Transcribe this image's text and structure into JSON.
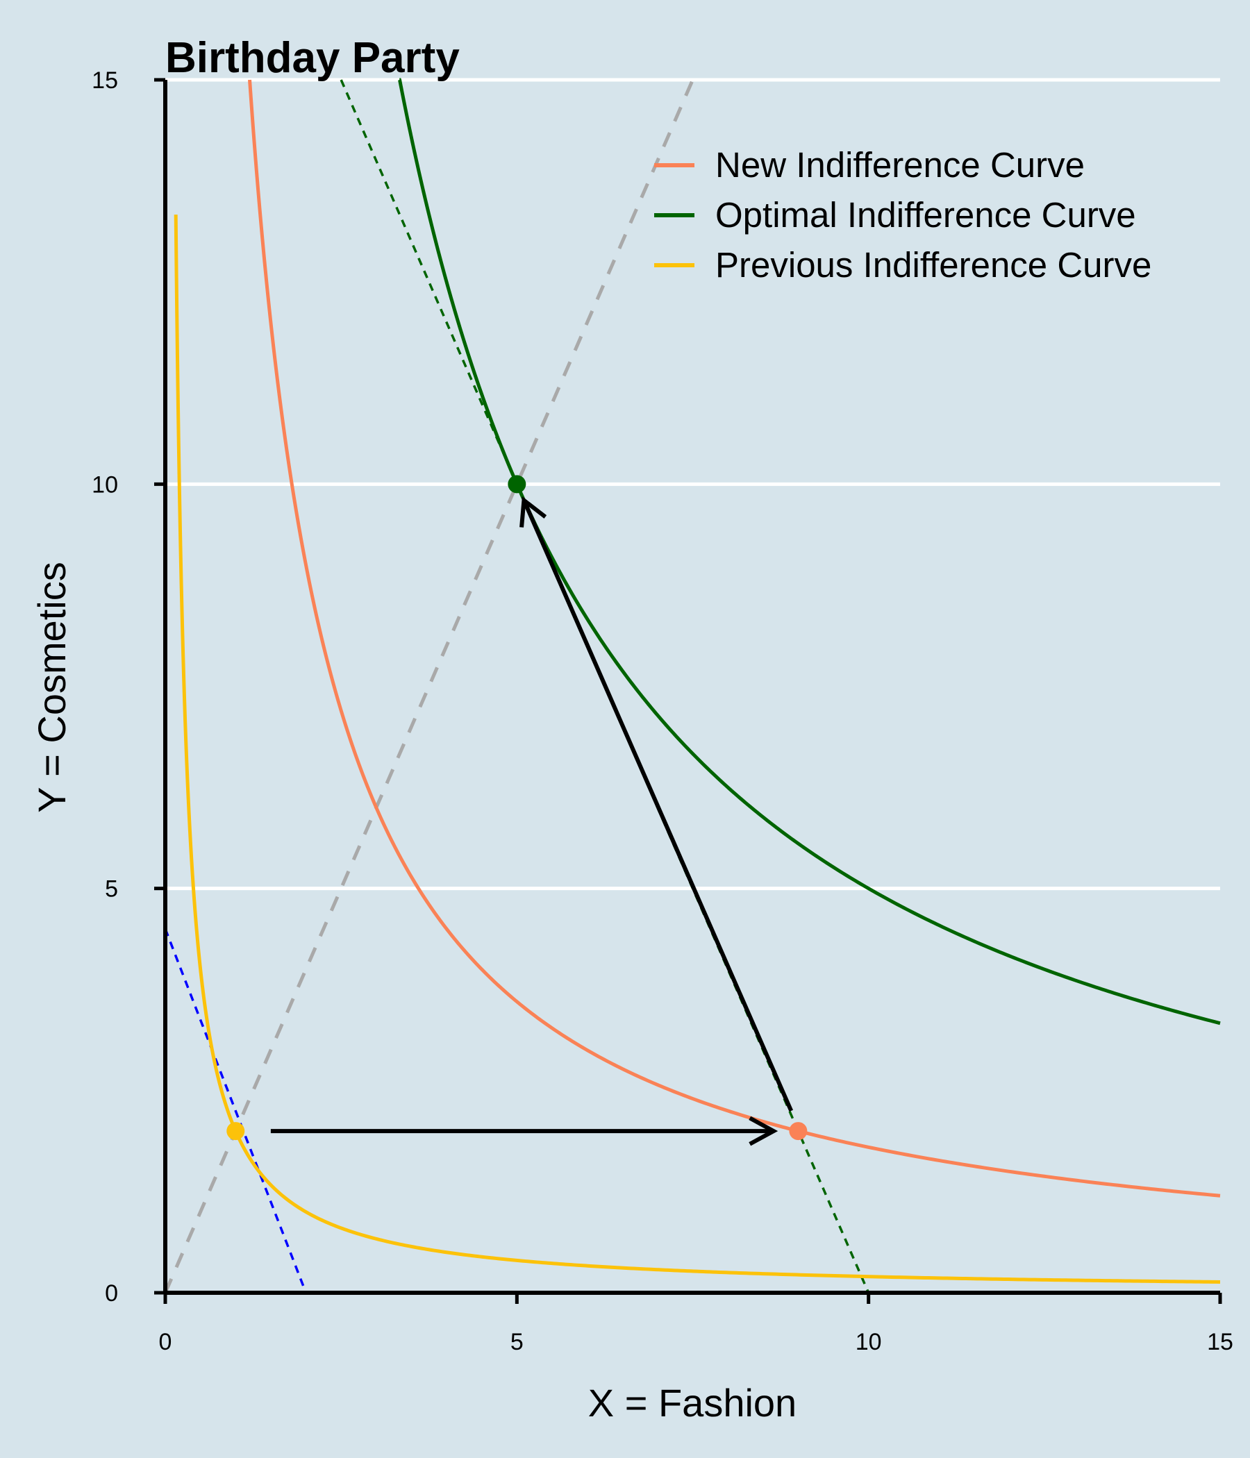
{
  "chart_data": {
    "type": "line",
    "title": "Birthday Party",
    "xlabel": "X = Fashion",
    "ylabel": "Y = Cosmetics",
    "xlim": [
      0,
      15
    ],
    "ylim": [
      0,
      15
    ],
    "xticks": [
      "0",
      "5",
      "10",
      "15"
    ],
    "yticks": [
      "0",
      "5",
      "10",
      "15"
    ],
    "grid": "horizontal",
    "legend_position": "top-right",
    "colors": {
      "background": "#d6e4eb",
      "new": "#fa8256",
      "optimal": "#006400",
      "previous": "#fcc20a",
      "ray": "#a9a9a9",
      "previous_budget": "#0000ff",
      "new_budget": "#006400",
      "arrow": "#000000"
    },
    "series": [
      {
        "name": "New Indifference Curve",
        "function": "y = 18 / x",
        "x_range": [
          1.2,
          15
        ],
        "color_key": "new"
      },
      {
        "name": "Optimal Indifference Curve",
        "function": "y = 50 / x",
        "x_range": [
          3.33,
          15
        ],
        "color_key": "optimal"
      },
      {
        "name": "Previous Indifference Curve",
        "function": "y = 2 / x",
        "x_range": [
          0.15,
          15
        ],
        "color_key": "previous"
      }
    ],
    "reference_lines": [
      {
        "role": "expansion path",
        "function": "y = 2x",
        "x_range": [
          0,
          7.5
        ],
        "style": "dashed",
        "color_key": "ray"
      },
      {
        "role": "previous budget line",
        "points": [
          [
            0,
            4.5
          ],
          [
            2,
            0
          ]
        ],
        "style": "dotted",
        "color_key": "previous_budget"
      },
      {
        "role": "new budget line",
        "points": [
          [
            2.5,
            15
          ],
          [
            10,
            0
          ]
        ],
        "style": "dotted",
        "color_key": "new_budget"
      }
    ],
    "points": [
      {
        "x": 1,
        "y": 2,
        "color_key": "previous"
      },
      {
        "x": 9,
        "y": 2,
        "color_key": "new"
      },
      {
        "x": 5,
        "y": 10,
        "color_key": "optimal"
      }
    ],
    "arrows": [
      {
        "from": [
          1.5,
          2
        ],
        "to": [
          8.65,
          2
        ]
      },
      {
        "from": [
          8.9,
          2.25
        ],
        "to": [
          5.1,
          9.8
        ]
      }
    ]
  }
}
